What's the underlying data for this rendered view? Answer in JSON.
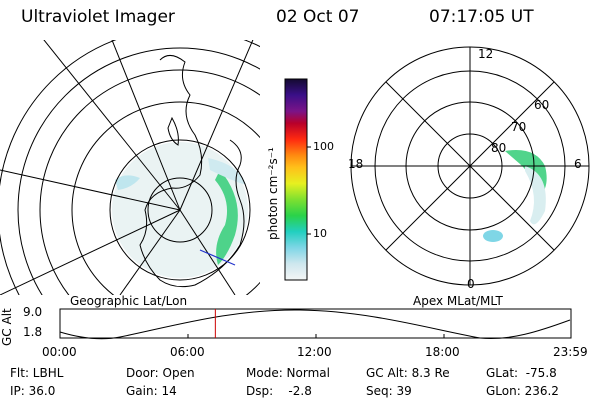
{
  "header": {
    "instrument": "Ultraviolet Imager",
    "date": "02 Oct 07",
    "time": "07:17:05 UT"
  },
  "colorbar": {
    "unit_label": "photon cm⁻²s⁻¹",
    "ticks": [
      "100",
      "10"
    ]
  },
  "geo_panel": {
    "label": "Geographic Lat/Lon"
  },
  "apex_panel": {
    "label": "Apex MLat/MLT",
    "mlt_labels": {
      "top": "12",
      "left": "18",
      "right": "6",
      "bottom": "0"
    },
    "lat_labels": [
      "60",
      "70",
      "80"
    ]
  },
  "altitude_strip": {
    "axis_label": "GC Alt",
    "y_ticks": [
      "9.0",
      "1.8"
    ],
    "x_ticks": [
      "00:00",
      "06:00",
      "12:00",
      "18:00",
      "23:59"
    ],
    "current_time_fraction": 0.304
  },
  "info": {
    "filter": "Flt: LBHL",
    "ip": "IP: 36.0",
    "door": "Door: Open",
    "gain": "Gain: 14",
    "mode": "Mode: Normal",
    "dsp": "Dsp:    -2.8",
    "gc_alt": "GC Alt: 8.3 Re",
    "seq": "Seq: 39",
    "glat": "GLat:  -75.8",
    "glon": "GLon: 236.2"
  },
  "colors": {
    "marker": "#cc0000",
    "aurora": "#22cc66"
  }
}
